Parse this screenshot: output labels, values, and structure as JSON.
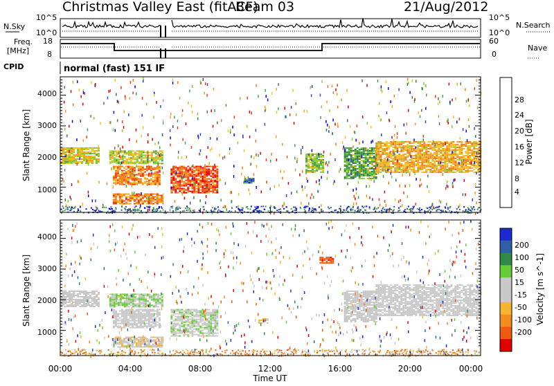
{
  "header": {
    "site": "Christmas Valley East (fitACF)",
    "beam": "Beam 03",
    "date": "21/Aug/2012"
  },
  "top_panels": {
    "nsky": {
      "label": "N.Sky",
      "ticks": [
        "10^5",
        "10^0"
      ],
      "right_label": "N.Search",
      "right_ticks": [
        "10^5",
        "10^0"
      ]
    },
    "freq": {
      "label_line1": "Freq.",
      "label_line2": "[MHz]",
      "ticks": [
        "18",
        "8"
      ],
      "right_label": "Nave",
      "right_ticks": [
        "60",
        "0"
      ]
    },
    "cpid": {
      "label": "CPID",
      "value": "normal (fast) 151 IF"
    }
  },
  "colors": {
    "power_scale": [
      "#0000ff",
      "#2f46c4",
      "#3e7a4a",
      "#3fa24a",
      "#7fcf33",
      "#f2c41a",
      "#f5a31e",
      "#f07a17",
      "#ee3a12",
      "#e00000"
    ],
    "velocity_scale": [
      "#e00000",
      "#ef5a10",
      "#f28c1b",
      "#f5b531",
      "#c8c8c8",
      "#c8c8c8",
      "#66cc33",
      "#2f8a47",
      "#2e5fa8",
      "#1b2bd0"
    ]
  },
  "chart_data": [
    {
      "type": "heatmap",
      "panel": "power",
      "x": {
        "label": "Time UT",
        "range_hours": [
          0,
          24
        ],
        "tick_labels": [
          "00:00",
          "04:00",
          "08:00",
          "12:00",
          "16:00",
          "20:00",
          "00:00"
        ]
      },
      "y": {
        "label": "Slant Range [km]",
        "range_km": [
          180,
          4600
        ],
        "tick_labels": [
          "1000",
          "2000",
          "3000",
          "4000"
        ]
      },
      "colorbar": {
        "label": "Power [dB]",
        "tick_labels": [
          "4",
          "8",
          "12",
          "16",
          "20",
          "24",
          "28"
        ],
        "range": [
          0,
          32
        ]
      },
      "features": [
        {
          "t": [
            0.0,
            2.2
          ],
          "range_km": [
            1800,
            2300
          ],
          "level": 0.55
        },
        {
          "t": [
            2.8,
            5.8
          ],
          "range_km": [
            1750,
            2200
          ],
          "level": 0.5
        },
        {
          "t": [
            3.0,
            5.7
          ],
          "range_km": [
            1100,
            1700
          ],
          "level": 0.75
        },
        {
          "t": [
            3.0,
            6.0
          ],
          "range_km": [
            450,
            800
          ],
          "level": 0.75
        },
        {
          "t": [
            6.3,
            9.0
          ],
          "range_km": [
            800,
            1700
          ],
          "level": 0.85
        },
        {
          "t": [
            10.5,
            11.0
          ],
          "range_km": [
            1150,
            1300
          ],
          "level": 0.2
        },
        {
          "t": [
            14.0,
            15.0
          ],
          "range_km": [
            1500,
            2100
          ],
          "level": 0.45
        },
        {
          "t": [
            16.2,
            18.0
          ],
          "range_km": [
            1300,
            2300
          ],
          "level": 0.35
        },
        {
          "t": [
            18.0,
            24.0
          ],
          "range_km": [
            1500,
            2500
          ],
          "level": 0.65
        }
      ]
    },
    {
      "type": "heatmap",
      "panel": "velocity",
      "x": {
        "label": "Time UT",
        "range_hours": [
          0,
          24
        ],
        "tick_labels": [
          "00:00",
          "04:00",
          "08:00",
          "12:00",
          "16:00",
          "20:00",
          "00:00"
        ]
      },
      "y": {
        "label": "Slant Range [km]",
        "range_km": [
          180,
          4600
        ],
        "tick_labels": [
          "1000",
          "2000",
          "3000",
          "4000"
        ]
      },
      "colorbar": {
        "label": "Velocity [m s^-1]",
        "tick_labels": [
          "200",
          "100",
          "50",
          "15",
          "-15",
          "-50",
          "-100",
          "-200"
        ]
      },
      "features": [
        {
          "t": [
            0.0,
            2.2
          ],
          "range_km": [
            1800,
            2300
          ],
          "velocity": 0
        },
        {
          "t": [
            2.8,
            5.8
          ],
          "range_km": [
            1750,
            2200
          ],
          "velocity": 60
        },
        {
          "t": [
            3.0,
            5.7
          ],
          "range_km": [
            1100,
            1700
          ],
          "velocity": 0
        },
        {
          "t": [
            3.0,
            6.0
          ],
          "range_km": [
            450,
            800
          ],
          "velocity": -40
        },
        {
          "t": [
            6.3,
            9.0
          ],
          "range_km": [
            800,
            1700
          ],
          "velocity": 40
        },
        {
          "t": [
            11.3,
            11.8
          ],
          "range_km": [
            1250,
            1400
          ],
          "velocity": -60
        },
        {
          "t": [
            14.8,
            15.6
          ],
          "range_km": [
            3200,
            3400
          ],
          "velocity": -200
        },
        {
          "t": [
            16.2,
            18.0
          ],
          "range_km": [
            1300,
            2300
          ],
          "velocity": 0
        },
        {
          "t": [
            18.0,
            24.0
          ],
          "range_km": [
            1500,
            2500
          ],
          "velocity": 0
        }
      ]
    }
  ]
}
